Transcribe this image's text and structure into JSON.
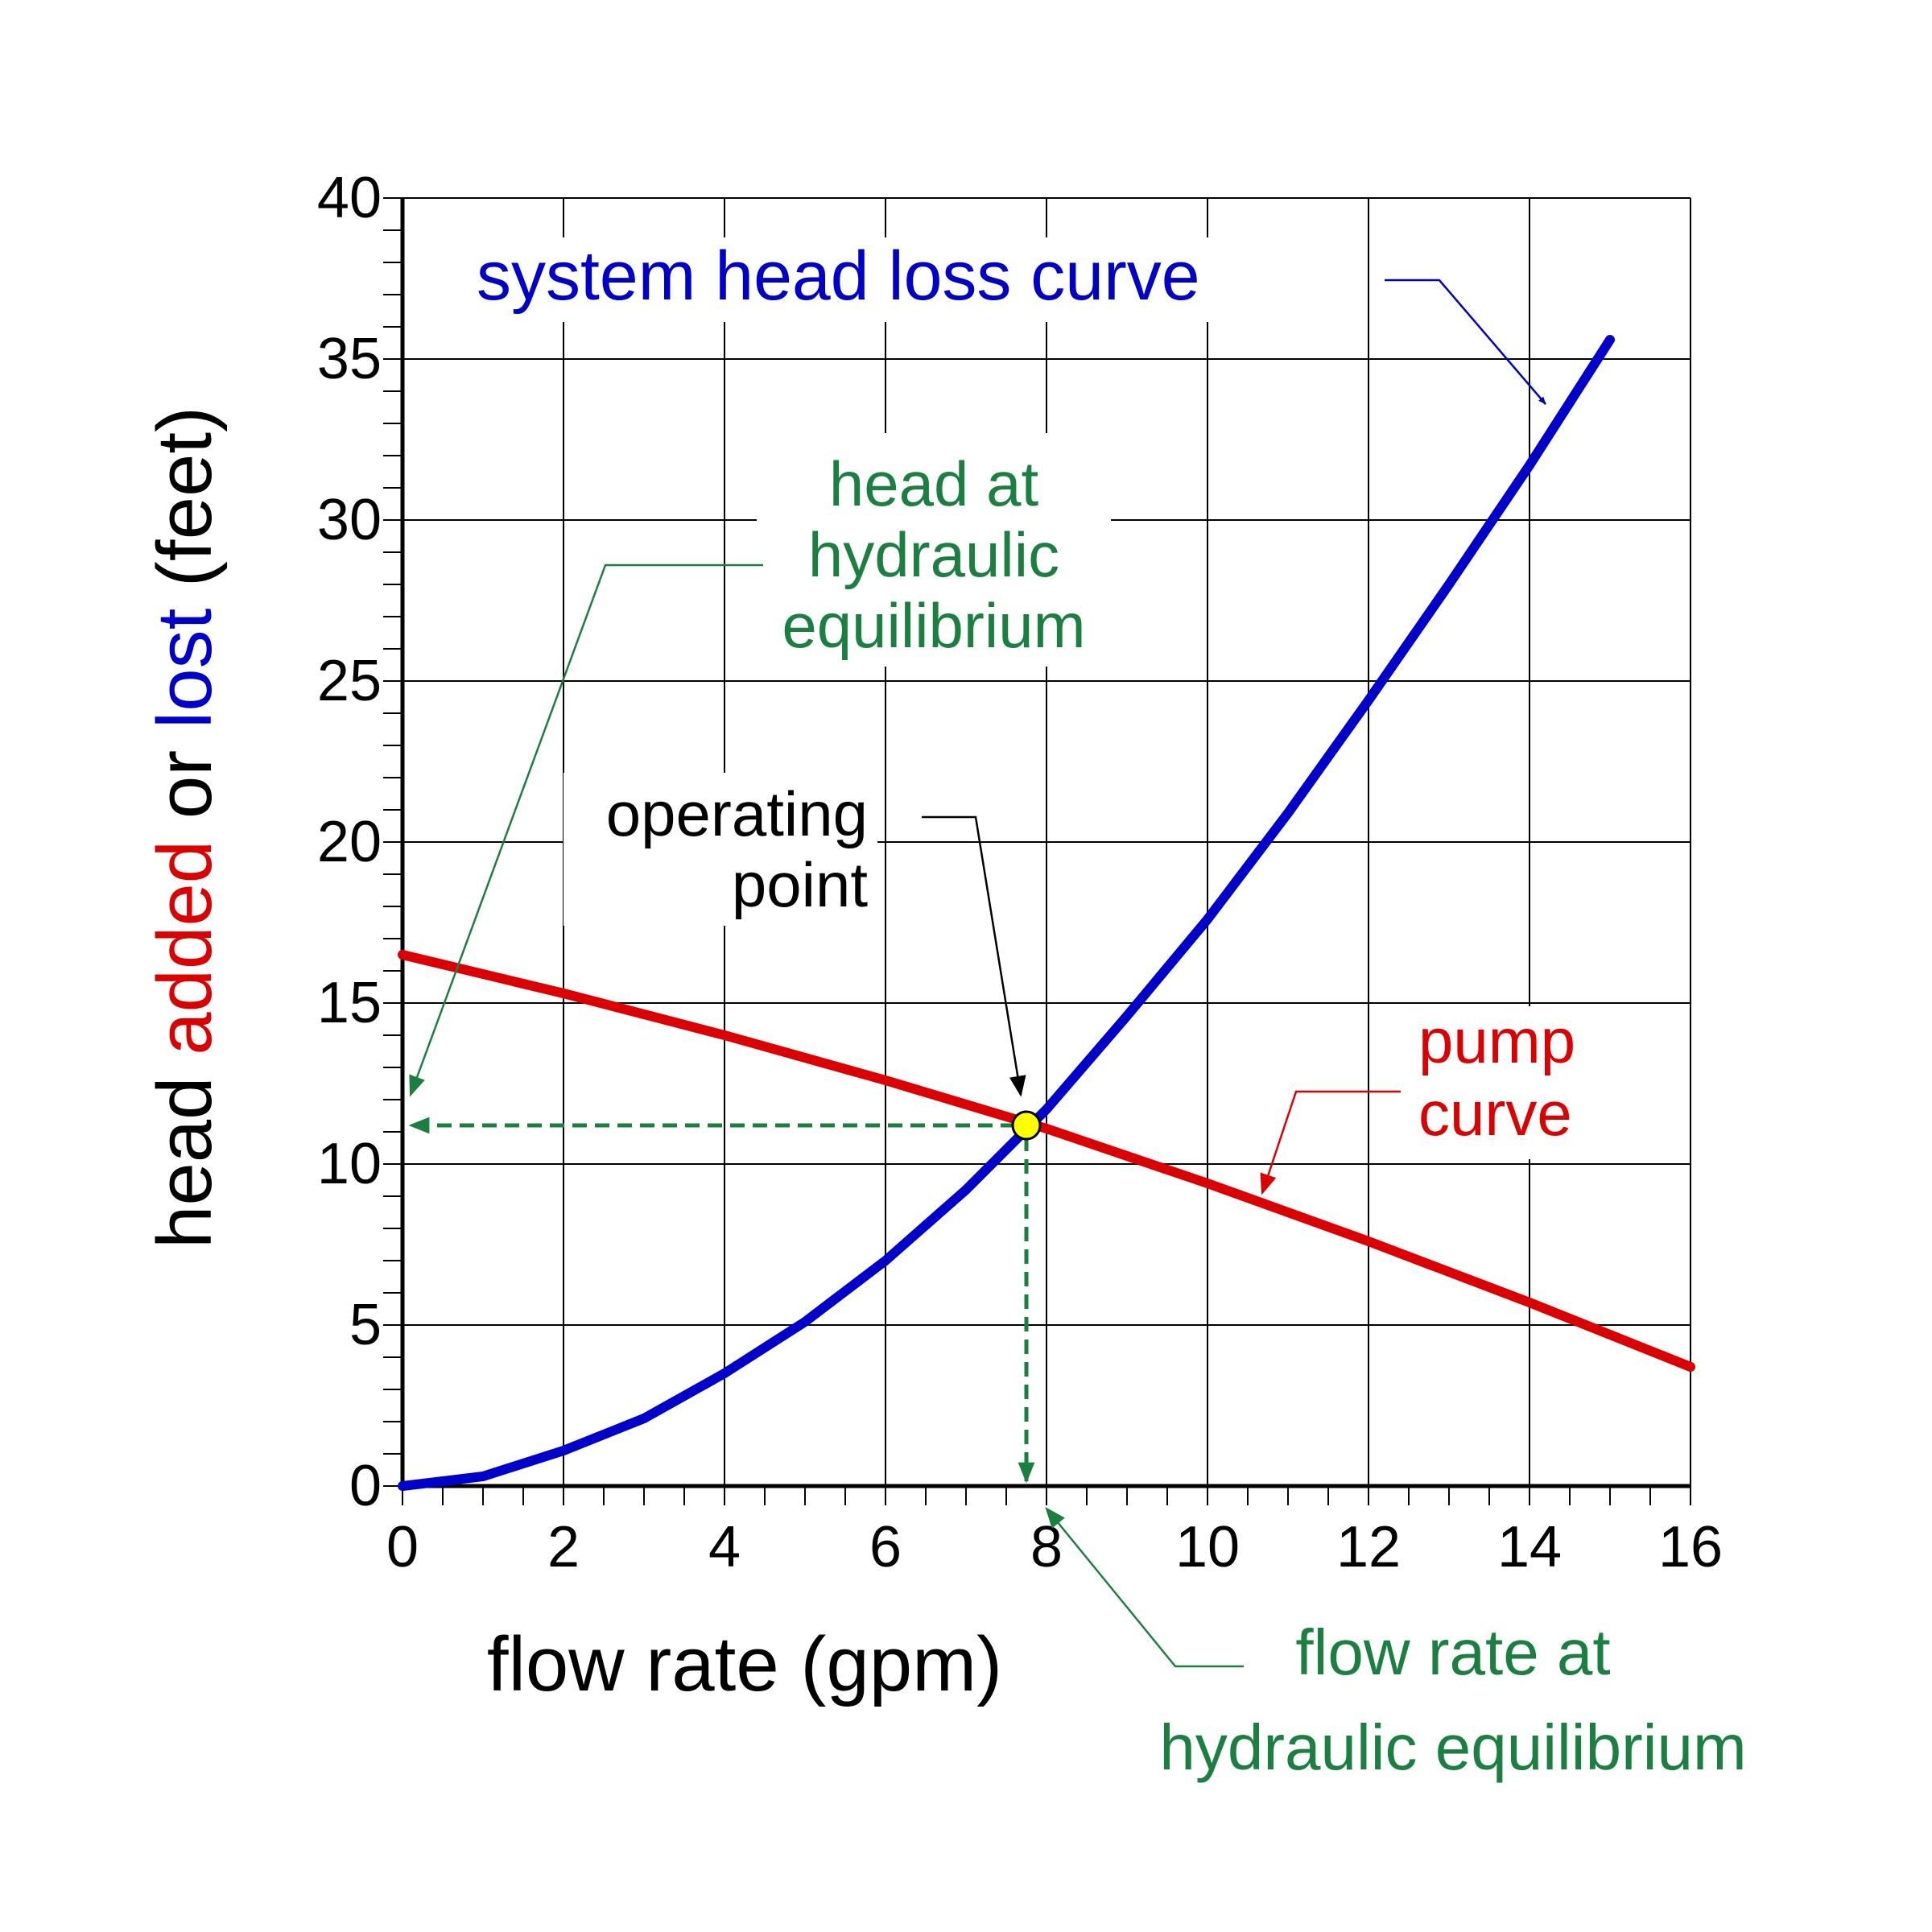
{
  "chart_data": {
    "type": "line",
    "xlabel": "flow rate (gpm)",
    "ylabel_parts": [
      {
        "text": "head ",
        "color": "#000000"
      },
      {
        "text": "added",
        "color": "#dd0000"
      },
      {
        "text": " or ",
        "color": "#000000"
      },
      {
        "text": "lost",
        "color": "#0000cc"
      },
      {
        "text": " (feet)",
        "color": "#000000"
      }
    ],
    "xlim": [
      0,
      16
    ],
    "ylim": [
      0,
      40
    ],
    "xticks": [
      0,
      2,
      4,
      6,
      8,
      10,
      12,
      14,
      16
    ],
    "yticks": [
      0,
      5,
      10,
      15,
      20,
      25,
      30,
      35,
      40
    ],
    "grid": true,
    "series": [
      {
        "id": "system",
        "color": "#0000cc",
        "x": [
          0,
          1,
          2,
          3,
          4,
          5,
          6,
          7,
          8,
          9,
          10,
          11,
          12,
          13,
          14,
          15
        ],
        "y": [
          0,
          0.3,
          1.1,
          2.1,
          3.5,
          5.1,
          7.0,
          9.2,
          11.7,
          14.6,
          17.6,
          20.9,
          24.4,
          28.0,
          31.7,
          35.6
        ]
      },
      {
        "id": "pump",
        "color": "#dd0000",
        "x": [
          0,
          2,
          4,
          6,
          8,
          10,
          12,
          14,
          16
        ],
        "y": [
          16.5,
          15.3,
          14.0,
          12.6,
          11.1,
          9.4,
          7.6,
          5.7,
          3.7
        ]
      }
    ],
    "operating_point": {
      "x": 7.75,
      "y": 11.2,
      "color": "#ffff00"
    },
    "annotations": {
      "system_label": {
        "text": "system head loss curve",
        "color": "#0000cc"
      },
      "pump_label": {
        "lines": [
          "pump",
          "curve"
        ],
        "color": "#dd0000"
      },
      "head_label": {
        "lines": [
          "head at",
          "hydraulic",
          "equilibrium"
        ],
        "color": "#1a8040"
      },
      "operating_label": {
        "lines": [
          "operating",
          "point"
        ],
        "color": "#000000"
      },
      "flow_label": {
        "lines": [
          "flow rate at",
          "hydraulic equilibrium"
        ],
        "color": "#1a8040"
      }
    }
  }
}
